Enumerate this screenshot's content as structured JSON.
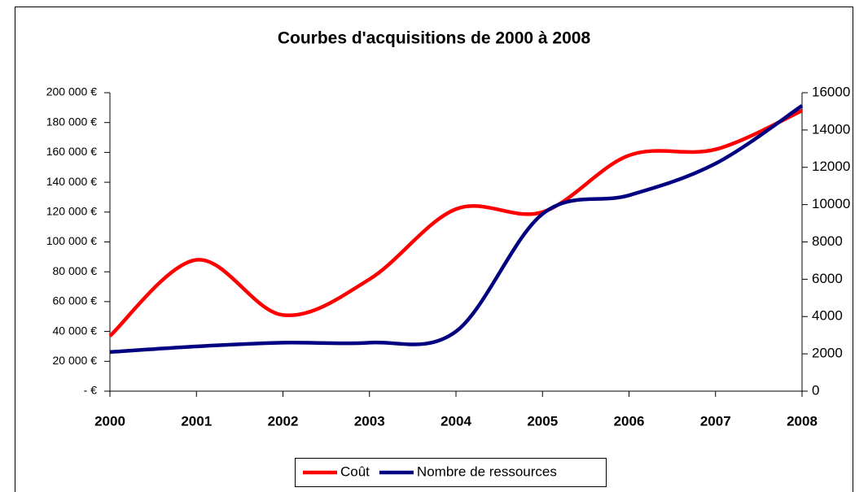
{
  "chart_data": {
    "type": "line",
    "title": "Courbes d'acquisitions de 2000 à 2008",
    "categories": [
      "2000",
      "2001",
      "2002",
      "2003",
      "2004",
      "2005",
      "2006",
      "2007",
      "2008"
    ],
    "series": [
      {
        "name": "Coût",
        "color": "#ff0000",
        "values": [
          37000,
          88000,
          51000,
          75000,
          122000,
          120000,
          158000,
          162000,
          188000
        ]
      },
      {
        "name": "Nombre de ressources",
        "color": "#000080",
        "axis": "y2",
        "values": [
          2100,
          2400,
          2600,
          2600,
          3200,
          9500,
          10500,
          12200,
          15300
        ]
      }
    ],
    "ylim": [
      0,
      200000
    ],
    "yticks": [
      {
        "value": 0,
        "label": "-   €"
      },
      {
        "value": 20000,
        "label": "20 000 €"
      },
      {
        "value": 40000,
        "label": "40 000 €"
      },
      {
        "value": 60000,
        "label": "60 000 €"
      },
      {
        "value": 80000,
        "label": "80 000 €"
      },
      {
        "value": 100000,
        "label": "100 000 €"
      },
      {
        "value": 120000,
        "label": "120 000 €"
      },
      {
        "value": 140000,
        "label": "140 000 €"
      },
      {
        "value": 160000,
        "label": "160 000 €"
      },
      {
        "value": 180000,
        "label": "180 000 €"
      },
      {
        "value": 200000,
        "label": "200 000 €"
      }
    ],
    "y2lim": [
      0,
      16000
    ],
    "y2ticks": [
      0,
      2000,
      4000,
      6000,
      8000,
      10000,
      12000,
      14000,
      16000
    ],
    "legend": "bottom"
  }
}
